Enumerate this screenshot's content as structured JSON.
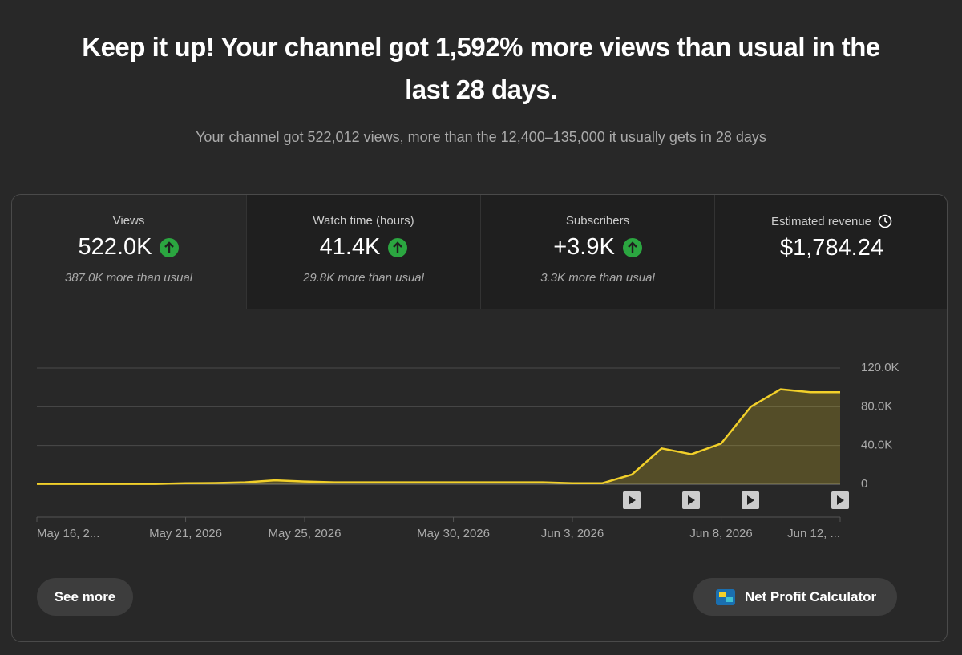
{
  "header": {
    "title": "Keep it up! Your channel got 1,592% more views than usual in the last 28 days.",
    "subtitle": "Your channel got 522,012 views, more than the 12,400–135,000 it usually gets in 28 days"
  },
  "metrics": [
    {
      "label": "Views",
      "value": "522.0K",
      "note": "387.0K more than usual"
    },
    {
      "label": "Watch time (hours)",
      "value": "41.4K",
      "note": "29.8K more than usual"
    },
    {
      "label": "Subscribers",
      "value": "+3.9K",
      "note": "3.3K more than usual"
    },
    {
      "label": "Estimated revenue",
      "value": "$1,784.24"
    }
  ],
  "chart_data": {
    "type": "line",
    "categories": [
      "May 16, 2...",
      null,
      null,
      null,
      null,
      "May 21, 2026",
      null,
      null,
      null,
      "May 25, 2026",
      null,
      null,
      null,
      null,
      "May 30, 2026",
      null,
      null,
      null,
      "Jun 3, 2026",
      null,
      null,
      null,
      null,
      "Jun 8, 2026",
      null,
      null,
      null,
      "Jun 12, ..."
    ],
    "values": [
      300,
      300,
      300,
      300,
      300,
      1000,
      1200,
      2000,
      4000,
      2800,
      2000,
      2000,
      2000,
      2000,
      2000,
      2000,
      2000,
      2000,
      1000,
      1000,
      10000,
      37000,
      31000,
      42000,
      80000,
      98000,
      95000,
      95000
    ],
    "color": "#f2d02a",
    "fill_color": "rgba(242,208,42,0.22)",
    "ylim": [
      0,
      120000
    ],
    "yticks": [
      0,
      {
        "value": 40000,
        "label": "40.0K"
      },
      {
        "value": 80000,
        "label": "80.0K"
      },
      {
        "value": 120000,
        "label": "120.0K"
      }
    ],
    "grid": true
  },
  "buttons": {
    "see_more": "See more",
    "calculator": "Net Profit Calculator"
  }
}
